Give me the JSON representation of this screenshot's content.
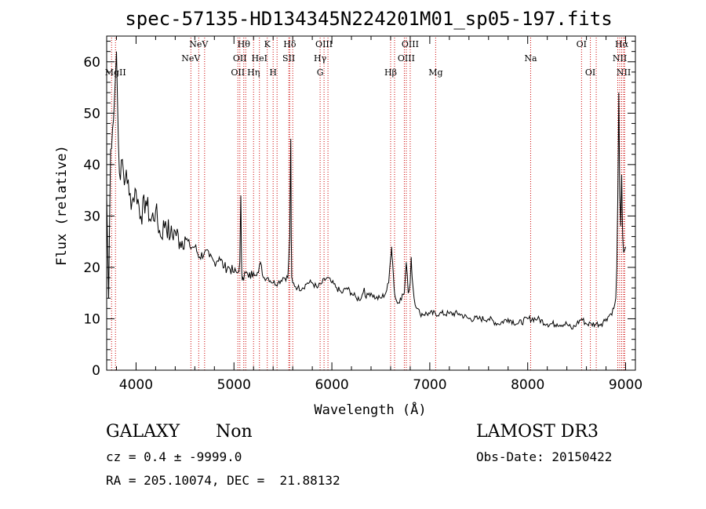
{
  "chart_data": {
    "type": "line",
    "title": "spec-57135-HD134345N224201M01_sp05-197.fits",
    "xlabel": "Wavelength (Å)",
    "ylabel": "Flux (relative)",
    "xlim": [
      3700,
      9100
    ],
    "ylim": [
      0,
      65
    ],
    "xticks": [
      4000,
      5000,
      6000,
      7000,
      8000,
      9000
    ],
    "yticks": [
      0,
      10,
      20,
      30,
      40,
      50,
      60
    ],
    "series": [
      {
        "name": "spectrum",
        "x": [
          3700,
          3720,
          3740,
          3760,
          3780,
          3800,
          3820,
          3840,
          3860,
          3880,
          3900,
          3930,
          3960,
          4000,
          4050,
          4100,
          4150,
          4200,
          4250,
          4300,
          4350,
          4400,
          4450,
          4500,
          4550,
          4600,
          4650,
          4700,
          4750,
          4800,
          4850,
          4900,
          4950,
          5000,
          5040,
          5060,
          5070,
          5075,
          5080,
          5090,
          5120,
          5150,
          5200,
          5250,
          5270,
          5300,
          5350,
          5400,
          5450,
          5500,
          5550,
          5570,
          5580,
          5585,
          5590,
          5600,
          5650,
          5700,
          5750,
          5800,
          5850,
          5900,
          5950,
          6000,
          6050,
          6100,
          6150,
          6200,
          6250,
          6300,
          6330,
          6350,
          6380,
          6400,
          6450,
          6500,
          6550,
          6580,
          6600,
          6610,
          6620,
          6630,
          6640,
          6650,
          6670,
          6700,
          6740,
          6760,
          6780,
          6800,
          6810,
          6820,
          6840,
          6870,
          6900,
          7000,
          7100,
          7200,
          7300,
          7400,
          7500,
          7600,
          7700,
          7800,
          7900,
          8000,
          8100,
          8200,
          8300,
          8400,
          8450,
          8500,
          8550,
          8600,
          8650,
          8700,
          8750,
          8800,
          8850,
          8880,
          8900,
          8910,
          8920,
          8930,
          8940,
          8950,
          8960,
          8970,
          8980,
          9000
        ],
        "y": [
          34,
          14,
          43,
          47,
          53,
          62,
          44,
          37,
          41,
          36,
          39,
          34,
          33,
          35,
          30,
          33,
          29,
          31,
          26,
          29,
          26,
          27,
          25,
          26,
          24,
          24,
          22,
          23,
          22,
          21,
          22,
          20,
          20,
          19,
          19,
          21,
          34,
          25,
          19,
          18,
          19,
          18,
          19,
          19,
          21,
          18,
          18,
          17,
          17,
          18,
          18,
          26,
          45,
          26,
          18,
          17,
          16,
          16,
          17,
          17,
          16,
          17,
          18,
          17,
          16,
          15,
          16,
          15,
          14,
          14,
          16,
          14,
          15,
          15,
          14,
          14,
          15,
          17,
          22,
          24,
          21,
          18,
          15,
          14,
          13,
          14,
          15,
          21,
          15,
          17,
          22,
          18,
          14,
          12,
          11,
          11,
          11,
          11,
          11,
          10,
          10,
          10,
          9,
          10,
          9,
          10,
          10,
          9,
          9,
          9,
          8,
          9,
          10,
          9,
          9,
          9,
          9,
          10,
          11,
          12,
          14,
          20,
          33,
          54,
          34,
          28,
          38,
          26,
          23,
          24
        ]
      }
    ],
    "lines": {
      "top": [
        {
          "label": "NeV",
          "x": 4640
        },
        {
          "label": "Hθ",
          "x": 5100
        },
        {
          "label": "K",
          "x": 5340
        },
        {
          "label": "Hδ",
          "x": 5570
        },
        {
          "label": "OIII",
          "x": 5920
        },
        {
          "label": "OIII",
          "x": 6800
        },
        {
          "label": "OI",
          "x": 8550
        },
        {
          "label": "Hα",
          "x": 8960
        }
      ],
      "mid": [
        {
          "label": "NeV",
          "x": 4560
        },
        {
          "label": "OII",
          "x": 5060
        },
        {
          "label": "HeI",
          "x": 5260
        },
        {
          "label": "SII",
          "x": 5560
        },
        {
          "label": "Hγ",
          "x": 5880
        },
        {
          "label": "OIII",
          "x": 6760
        },
        {
          "label": "Na",
          "x": 8030
        },
        {
          "label": "NII",
          "x": 8940
        }
      ],
      "bot": [
        {
          "label": "MgII",
          "x": 3790
        },
        {
          "label": "OII",
          "x": 5040
        },
        {
          "label": "Hη",
          "x": 5200
        },
        {
          "label": "H",
          "x": 5400
        },
        {
          "label": "G",
          "x": 5880
        },
        {
          "label": "Hβ",
          "x": 6600
        },
        {
          "label": "Mg",
          "x": 7060
        },
        {
          "label": "OI",
          "x": 8640
        },
        {
          "label": "NII",
          "x": 8980
        }
      ],
      "extra_x": [
        3750,
        4700,
        5120,
        5440,
        5600,
        5960,
        6640,
        6740,
        8700,
        8920,
        8990
      ]
    }
  },
  "info": {
    "object_class": "GALAXY",
    "subclass": "Non",
    "survey": "LAMOST DR3",
    "cz_line": "cz = 0.4 ± -9999.0",
    "obs_date": "Obs-Date: 20150422",
    "coords": "RA = 205.10074, DEC =  21.88132"
  },
  "colors": {
    "spectrum": "#000000",
    "line_marker": "#cc0000",
    "axis": "#000000"
  }
}
